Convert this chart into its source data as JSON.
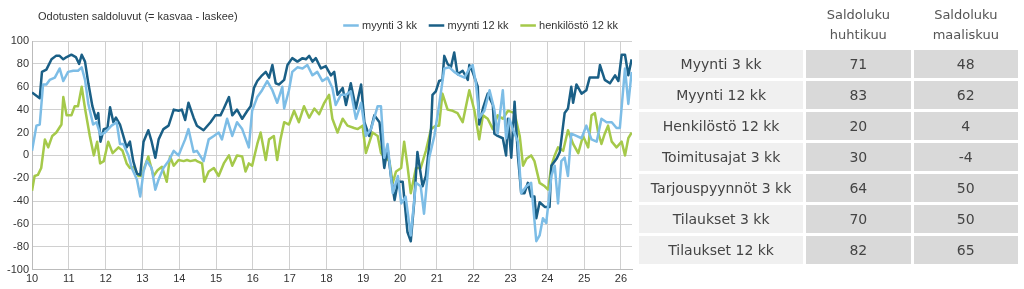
{
  "chart_data": [
    {
      "type": "line",
      "title": "Odotusten saldoluvut (= kasvaa - laskee)",
      "xlim": [
        10,
        26.3
      ],
      "xticks": [
        10,
        11,
        12,
        13,
        14,
        15,
        16,
        17,
        18,
        19,
        20,
        21,
        22,
        23,
        24,
        25,
        26
      ],
      "ylim": [
        -100,
        100
      ],
      "yticks": [
        -100,
        -80,
        -60,
        -40,
        -20,
        0,
        20,
        40,
        60,
        80,
        100
      ],
      "grid": true,
      "legend": "top right",
      "marker": "none",
      "line_style": "solid",
      "series": [
        {
          "name": "myynti 3 kk",
          "color": "#7dbde6",
          "x": [
            10.0,
            10.12,
            10.21,
            10.3,
            10.39,
            10.48,
            10.62,
            10.75,
            10.85,
            10.98,
            11.12,
            11.25,
            11.35,
            11.44,
            11.53,
            11.66,
            11.75,
            11.86,
            11.98,
            12.07,
            12.16,
            12.3,
            12.39,
            12.48,
            12.62,
            12.71,
            12.85,
            12.94,
            13.03,
            13.12,
            13.25,
            13.35,
            13.44,
            13.57,
            13.71,
            13.85,
            13.98,
            14.07,
            14.16,
            14.25,
            14.39,
            14.48,
            14.66,
            14.8,
            14.94,
            15.07,
            15.16,
            15.3,
            15.44,
            15.57,
            15.71,
            15.89,
            15.98,
            16.12,
            16.25,
            16.39,
            16.53,
            16.66,
            16.8,
            16.85,
            16.98,
            17.07,
            17.21,
            17.35,
            17.48,
            17.62,
            17.75,
            17.89,
            18.03,
            18.16,
            18.25,
            18.39,
            18.53,
            18.66,
            18.8,
            18.94,
            19.07,
            19.21,
            19.39,
            19.48,
            19.57,
            19.66,
            19.8,
            19.94,
            20.03,
            20.15,
            20.29,
            20.43,
            20.56,
            20.65,
            20.79,
            20.93,
            21.06,
            21.2,
            21.34,
            21.47,
            21.61,
            21.75,
            21.88,
            21.97,
            22.06,
            22.15,
            22.29,
            22.43,
            22.56,
            22.65,
            22.79,
            22.88,
            22.97,
            23.06,
            23.2,
            23.29,
            23.43,
            23.56,
            23.7,
            23.79,
            23.88,
            23.97,
            24.11,
            24.2,
            24.29,
            24.38,
            24.47,
            24.56,
            24.65,
            24.79,
            24.93,
            25.06,
            25.2,
            25.34,
            25.47,
            25.61,
            25.75,
            25.88,
            25.97,
            26.11,
            26.2,
            26.29
          ],
          "values": [
            4,
            26,
            27,
            62,
            62,
            66,
            68,
            76,
            65,
            73,
            74,
            74,
            77,
            66,
            45,
            27,
            29,
            18,
            20,
            23,
            26,
            29,
            10,
            10,
            0,
            -11,
            -21,
            -36,
            -14,
            -5,
            -11,
            -30,
            -21,
            -11,
            -5,
            4,
            0,
            7,
            14,
            23,
            3,
            4,
            -5,
            14,
            17,
            20,
            14,
            32,
            17,
            29,
            23,
            7,
            39,
            51,
            57,
            65,
            57,
            46,
            60,
            41,
            57,
            73,
            77,
            76,
            79,
            70,
            73,
            65,
            68,
            59,
            44,
            53,
            53,
            56,
            32,
            46,
            17,
            23,
            43,
            43,
            -2,
            10,
            -33,
            -18,
            -42,
            -36,
            -70,
            -24,
            -27,
            -51,
            -2,
            17,
            44,
            76,
            77,
            73,
            70,
            68,
            76,
            79,
            63,
            33,
            39,
            57,
            40,
            19,
            57,
            15,
            32,
            23,
            12,
            -33,
            -27,
            -24,
            -75,
            -70,
            -55,
            -59,
            -18,
            -9,
            -42,
            -5,
            -2,
            -18,
            19,
            17,
            15,
            26,
            14,
            12,
            32,
            29,
            29,
            24,
            24,
            76,
            45,
            73
          ]
        },
        {
          "name": "myynti 12 kk",
          "color": "#1a5f86",
          "x": [
            10.0,
            10.21,
            10.27,
            10.39,
            10.53,
            10.65,
            10.75,
            10.85,
            10.94,
            11.07,
            11.19,
            11.28,
            11.35,
            11.44,
            11.53,
            11.64,
            11.74,
            11.8,
            11.86,
            11.95,
            12.05,
            12.12,
            12.21,
            12.28,
            12.39,
            12.48,
            12.57,
            12.66,
            12.75,
            12.85,
            12.94,
            13.03,
            13.16,
            13.25,
            13.35,
            13.44,
            13.57,
            13.71,
            13.85,
            13.98,
            14.07,
            14.16,
            14.25,
            14.39,
            14.48,
            14.66,
            14.85,
            14.98,
            15.12,
            15.21,
            15.35,
            15.44,
            15.57,
            15.71,
            15.85,
            15.94,
            16.03,
            16.12,
            16.25,
            16.35,
            16.44,
            16.53,
            16.62,
            16.71,
            16.85,
            16.94,
            17.07,
            17.21,
            17.35,
            17.44,
            17.53,
            17.62,
            17.71,
            17.85,
            17.98,
            18.12,
            18.21,
            18.3,
            18.44,
            18.53,
            18.66,
            18.8,
            18.94,
            19.03,
            19.16,
            19.3,
            19.44,
            19.57,
            19.66,
            19.75,
            19.85,
            19.94,
            20.07,
            20.2,
            20.29,
            20.38,
            20.47,
            20.61,
            20.7,
            20.84,
            20.88,
            20.97,
            21.06,
            21.15,
            21.2,
            21.29,
            21.38,
            21.47,
            21.56,
            21.7,
            21.84,
            21.88,
            21.97,
            22.11,
            22.15,
            22.25,
            22.38,
            22.52,
            22.56,
            22.65,
            22.79,
            22.88,
            22.93,
            23.02,
            23.11,
            23.2,
            23.29,
            23.38,
            23.47,
            23.56,
            23.65,
            23.7,
            23.79,
            23.93,
            24.06,
            24.11,
            24.25,
            24.34,
            24.47,
            24.56,
            24.65,
            24.7,
            24.79,
            24.93,
            25.06,
            25.15,
            25.29,
            25.38,
            25.43,
            25.56,
            25.7,
            25.84,
            25.93,
            26.02,
            26.11,
            26.2,
            26.29
          ],
          "values": [
            55,
            50,
            73,
            75,
            84,
            87,
            87,
            84,
            86,
            88,
            86,
            80,
            88,
            82,
            63,
            43,
            32,
            37,
            12,
            23,
            24,
            42,
            29,
            33,
            27,
            17,
            7,
            12,
            -5,
            -16,
            -17,
            12,
            22,
            12,
            -2,
            14,
            23,
            26,
            40,
            39,
            40,
            31,
            46,
            33,
            26,
            22,
            29,
            35,
            35,
            41,
            51,
            35,
            40,
            32,
            39,
            43,
            59,
            65,
            70,
            73,
            68,
            79,
            63,
            62,
            66,
            79,
            85,
            82,
            85,
            84,
            87,
            82,
            85,
            76,
            78,
            70,
            73,
            53,
            59,
            44,
            63,
            41,
            62,
            29,
            17,
            35,
            29,
            -11,
            6,
            -18,
            -39,
            -23,
            -23,
            -67,
            -75,
            -42,
            3,
            -27,
            -18,
            23,
            53,
            56,
            65,
            66,
            87,
            80,
            77,
            90,
            71,
            74,
            66,
            79,
            73,
            60,
            27,
            41,
            54,
            44,
            19,
            17,
            15,
            0,
            32,
            -2,
            47,
            0,
            -33,
            -33,
            -24,
            -36,
            -36,
            -55,
            -41,
            -45,
            -45,
            -9,
            -3,
            3,
            37,
            41,
            60,
            46,
            62,
            54,
            57,
            68,
            68,
            68,
            79,
            66,
            63,
            70,
            65,
            88,
            88,
            70,
            84
          ]
        },
        {
          "name": "henkilöstö 12 kk",
          "color": "#a5c94a",
          "x": [
            10.0,
            10.07,
            10.16,
            10.25,
            10.35,
            10.44,
            10.55,
            10.66,
            10.8,
            10.85,
            10.94,
            11.07,
            11.16,
            11.25,
            11.35,
            11.44,
            11.57,
            11.68,
            11.77,
            11.85,
            11.95,
            12.07,
            12.19,
            12.35,
            12.46,
            12.57,
            12.66,
            12.77,
            12.89,
            12.98,
            13.07,
            13.16,
            13.3,
            13.41,
            13.53,
            13.66,
            13.75,
            13.85,
            13.98,
            14.12,
            14.21,
            14.3,
            14.44,
            14.48,
            14.62,
            14.68,
            14.8,
            14.94,
            15.07,
            15.21,
            15.35,
            15.44,
            15.57,
            15.71,
            15.8,
            15.89,
            15.98,
            16.12,
            16.21,
            16.35,
            16.44,
            16.57,
            16.66,
            16.75,
            16.85,
            16.98,
            17.12,
            17.25,
            17.39,
            17.53,
            17.67,
            17.8,
            17.94,
            18.07,
            18.16,
            18.3,
            18.44,
            18.57,
            18.75,
            18.85,
            18.98,
            19.07,
            19.25,
            19.39,
            19.48,
            19.57,
            19.71,
            19.8,
            19.89,
            20.03,
            20.11,
            20.2,
            20.29,
            20.43,
            20.56,
            20.7,
            20.84,
            20.97,
            21.06,
            21.15,
            21.29,
            21.43,
            21.56,
            21.7,
            21.88,
            22.02,
            22.15,
            22.25,
            22.38,
            22.52,
            22.65,
            22.79,
            22.93,
            23.11,
            23.25,
            23.34,
            23.43,
            23.56,
            23.65,
            23.79,
            23.93,
            24.02,
            24.11,
            24.2,
            24.29,
            24.43,
            24.56,
            24.7,
            24.84,
            24.97,
            25.11,
            25.2,
            25.29,
            25.38,
            25.47,
            25.56,
            25.65,
            25.75,
            25.88,
            26.02,
            26.11,
            26.2,
            26.29
          ],
          "values": [
            -31,
            -18,
            -17,
            -11,
            14,
            7,
            17,
            20,
            27,
            51,
            35,
            35,
            43,
            43,
            60,
            41,
            17,
            0,
            12,
            -7,
            -5,
            12,
            2,
            7,
            4,
            -7,
            -11,
            -10,
            -18,
            -18,
            -9,
            -1,
            -18,
            -13,
            -10,
            -23,
            -1,
            -9,
            -4,
            -5,
            -4,
            -5,
            -4,
            -5,
            -7,
            -23,
            -14,
            -11,
            -18,
            -7,
            0,
            -9,
            0,
            -1,
            -14,
            -7,
            -9,
            10,
            20,
            -4,
            14,
            17,
            -4,
            14,
            29,
            27,
            39,
            29,
            43,
            33,
            41,
            36,
            46,
            53,
            32,
            20,
            32,
            26,
            24,
            23,
            26,
            2,
            20,
            17,
            2,
            -1,
            -5,
            -24,
            -14,
            -11,
            12,
            -9,
            -33,
            -11,
            -11,
            4,
            23,
            26,
            26,
            54,
            40,
            39,
            37,
            29,
            57,
            39,
            14,
            35,
            32,
            23,
            35,
            32,
            39,
            37,
            17,
            -9,
            -3,
            0,
            -5,
            -24,
            -27,
            -30,
            -9,
            0,
            7,
            4,
            22,
            10,
            2,
            17,
            7,
            35,
            37,
            20,
            10,
            19,
            26,
            12,
            7,
            12,
            0,
            15,
            20
          ]
        }
      ]
    },
    {
      "type": "other",
      "data_labels": true,
      "categories": [
        "Myynti 3 kk",
        "Myynti 12 kk",
        "Henkilöstö 12 kk",
        "Toimitusajat 3 kk",
        "Tarjouspyynnöt 3 kk",
        "Tilaukset 3 kk",
        "Tilaukset 12 kk"
      ],
      "series": [
        {
          "name": "Saldoluku huhtikuu",
          "values": [
            71,
            83,
            20,
            30,
            64,
            70,
            82
          ]
        },
        {
          "name": "Saldoluku maaliskuu",
          "values": [
            48,
            62,
            4,
            -4,
            50,
            50,
            65
          ]
        }
      ]
    }
  ]
}
